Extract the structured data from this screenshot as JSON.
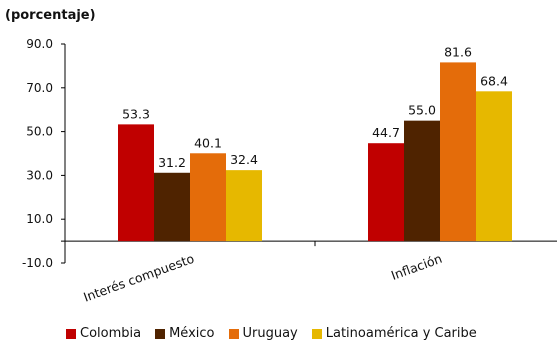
{
  "chart_data": {
    "type": "bar",
    "ylabel": "(porcentaje)",
    "ylim": [
      -10,
      90
    ],
    "yticks": [
      "90.0",
      "70.0",
      "50.0",
      "30.0",
      "10.0",
      "-10.0"
    ],
    "categories": [
      "Interés compuesto",
      "Inflación"
    ],
    "series": [
      {
        "name": "Colombia",
        "color": "#c00000",
        "values": [
          53.3,
          44.7
        ],
        "labels": [
          "53.3",
          "44.7"
        ]
      },
      {
        "name": "México",
        "color": "#4f2300",
        "values": [
          31.2,
          55.0
        ],
        "labels": [
          "31.2",
          "55.0"
        ]
      },
      {
        "name": "Uruguay",
        "color": "#e46c0a",
        "values": [
          40.1,
          81.6
        ],
        "labels": [
          "40.1",
          "81.6"
        ]
      },
      {
        "name": "Latinoamérica y Caribe",
        "color": "#e6b800",
        "values": [
          32.4,
          68.4
        ],
        "labels": [
          "32.4",
          "68.4"
        ]
      }
    ],
    "grid": false,
    "legend": "bottom"
  }
}
